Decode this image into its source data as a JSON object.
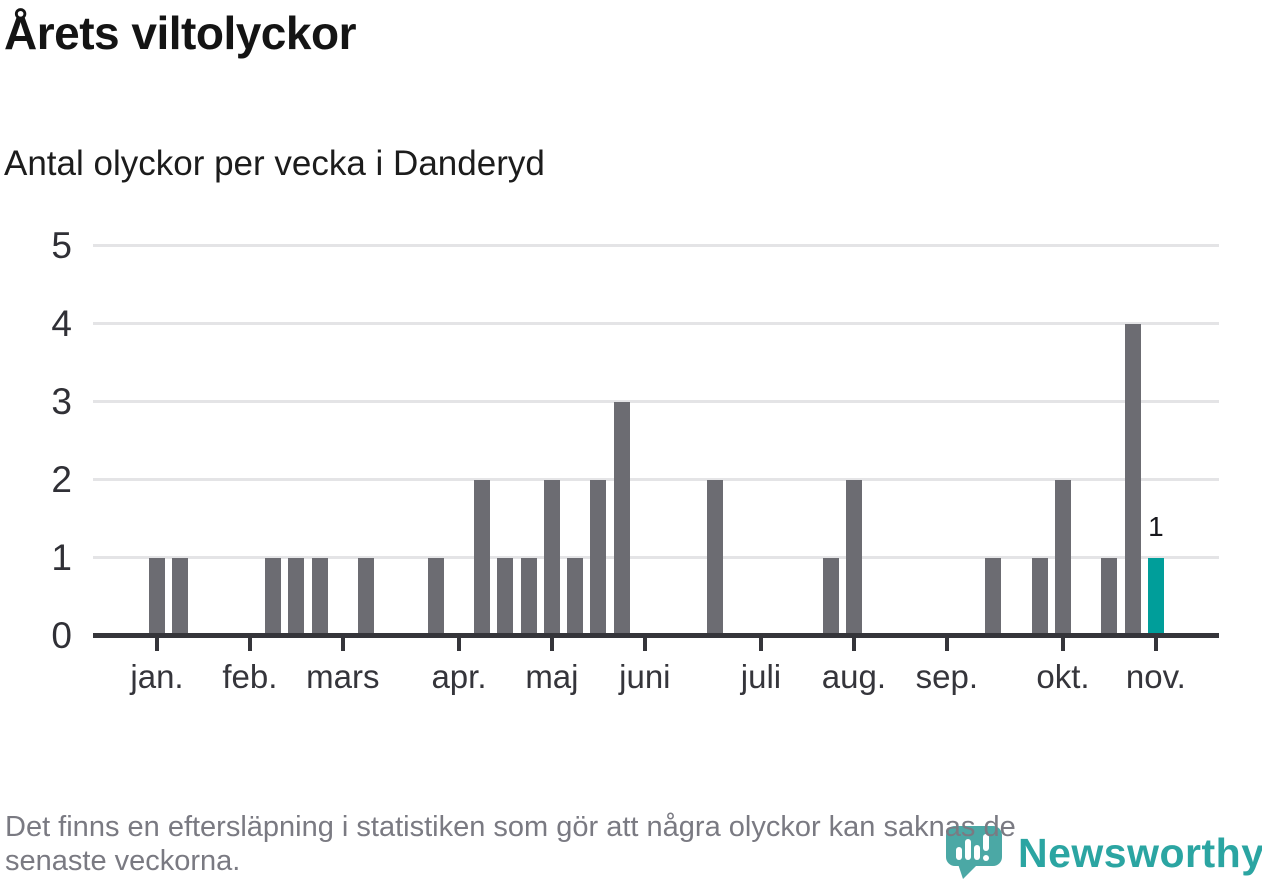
{
  "title": "Årets viltolyckor",
  "subtitle": "Antal olyckor per vecka i Danderyd",
  "footer": {
    "line1": "Det finns en eftersläpning i statistiken som gör att några olyckor kan saknas de",
    "line2": "senaste veckorna."
  },
  "logo": {
    "name": "Newsworthy"
  },
  "colors": {
    "bar": "#6c6c72",
    "highlight": "#009e9a",
    "grid": "#e4e4e6",
    "axis": "#35353a",
    "title_text": "#141414",
    "muted_text": "#7a7a82",
    "logo_teal": "#2ba5a2",
    "logo_mark_teal": "#4ba8a5"
  },
  "chart_data": {
    "type": "bar",
    "title": "Årets viltolyckor",
    "subtitle": "Antal olyckor per vecka i Danderyd",
    "xlabel": "",
    "ylabel": "",
    "ylim": [
      0,
      5
    ],
    "yticks": [
      "0",
      "1",
      "2",
      "3",
      "4",
      "5"
    ],
    "grid": true,
    "legend": "none",
    "bar_color": "#6c6c72",
    "highlight_color": "#009e9a",
    "x_axis_note": "weekly bars, one bar per week, months jan.–nov.",
    "months": [
      {
        "label": "jan.",
        "week": 0
      },
      {
        "label": "feb.",
        "week": 4
      },
      {
        "label": "mars",
        "week": 8
      },
      {
        "label": "apr.",
        "week": 13
      },
      {
        "label": "maj",
        "week": 17
      },
      {
        "label": "juni",
        "week": 21
      },
      {
        "label": "juli",
        "week": 26
      },
      {
        "label": "aug.",
        "week": 30
      },
      {
        "label": "sep.",
        "week": 34
      },
      {
        "label": "okt.",
        "week": 39
      },
      {
        "label": "nov.",
        "week": 43
      }
    ],
    "bars": [
      {
        "week": 0,
        "value": 1
      },
      {
        "week": 1,
        "value": 1
      },
      {
        "week": 5,
        "value": 1
      },
      {
        "week": 6,
        "value": 1
      },
      {
        "week": 7,
        "value": 1
      },
      {
        "week": 9,
        "value": 1
      },
      {
        "week": 12,
        "value": 1
      },
      {
        "week": 14,
        "value": 2
      },
      {
        "week": 15,
        "value": 1
      },
      {
        "week": 16,
        "value": 1
      },
      {
        "week": 17,
        "value": 2
      },
      {
        "week": 18,
        "value": 1
      },
      {
        "week": 19,
        "value": 2
      },
      {
        "week": 20,
        "value": 3
      },
      {
        "week": 24,
        "value": 2
      },
      {
        "week": 29,
        "value": 1
      },
      {
        "week": 30,
        "value": 2
      },
      {
        "week": 36,
        "value": 1
      },
      {
        "week": 38,
        "value": 1
      },
      {
        "week": 39,
        "value": 2
      },
      {
        "week": 41,
        "value": 1
      },
      {
        "week": 42,
        "value": 4
      },
      {
        "week": 43,
        "value": 1,
        "highlight": true,
        "data_label": "1"
      }
    ]
  }
}
